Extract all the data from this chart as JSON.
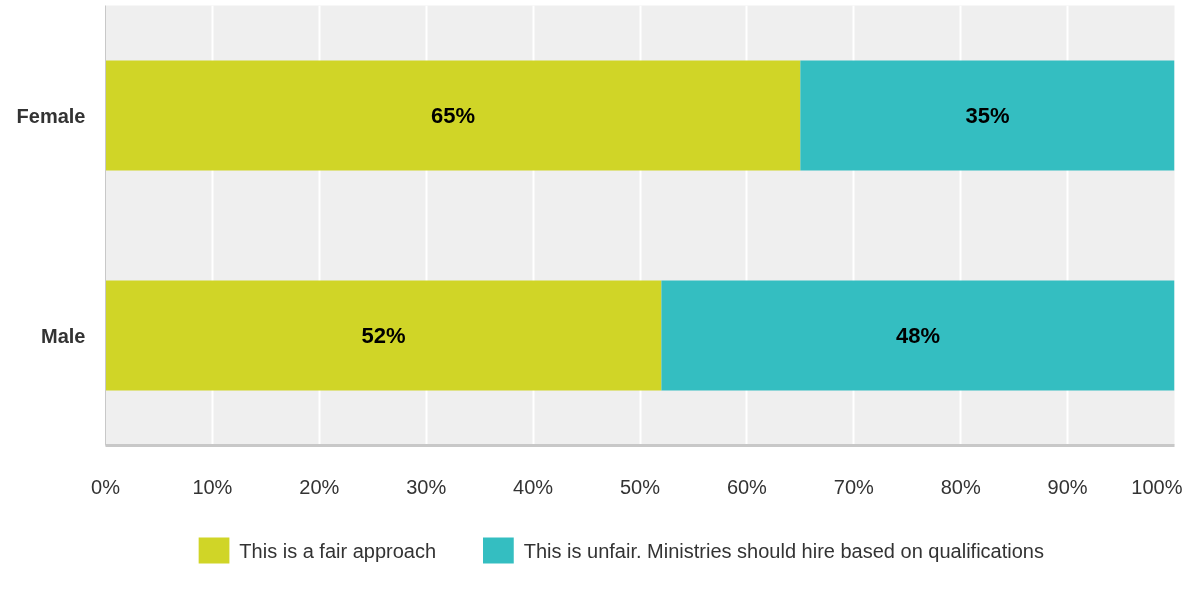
{
  "chart_data": {
    "type": "bar",
    "orientation": "horizontal",
    "stacked": true,
    "categories": [
      "Female",
      "Male"
    ],
    "series": [
      {
        "name": "This is a fair approach",
        "color": "#d0d527",
        "values": [
          65,
          52
        ],
        "value_labels": [
          "65%",
          "52%"
        ]
      },
      {
        "name": "This is unfair. Ministries should hire based on qualifications",
        "color": "#34bec1",
        "values": [
          35,
          48
        ],
        "value_labels": [
          "35%",
          "48%"
        ]
      }
    ],
    "xlim": [
      0,
      100
    ],
    "xticks": [
      {
        "value": 0,
        "label": "0%"
      },
      {
        "value": 10,
        "label": "10%"
      },
      {
        "value": 20,
        "label": "20%"
      },
      {
        "value": 30,
        "label": "30%"
      },
      {
        "value": 40,
        "label": "40%"
      },
      {
        "value": 50,
        "label": "50%"
      },
      {
        "value": 60,
        "label": "60%"
      },
      {
        "value": 70,
        "label": "70%"
      },
      {
        "value": 80,
        "label": "80%"
      },
      {
        "value": 90,
        "label": "90%"
      },
      {
        "value": 100,
        "label": "100%"
      }
    ],
    "grid": "x",
    "legend": "bottom"
  }
}
